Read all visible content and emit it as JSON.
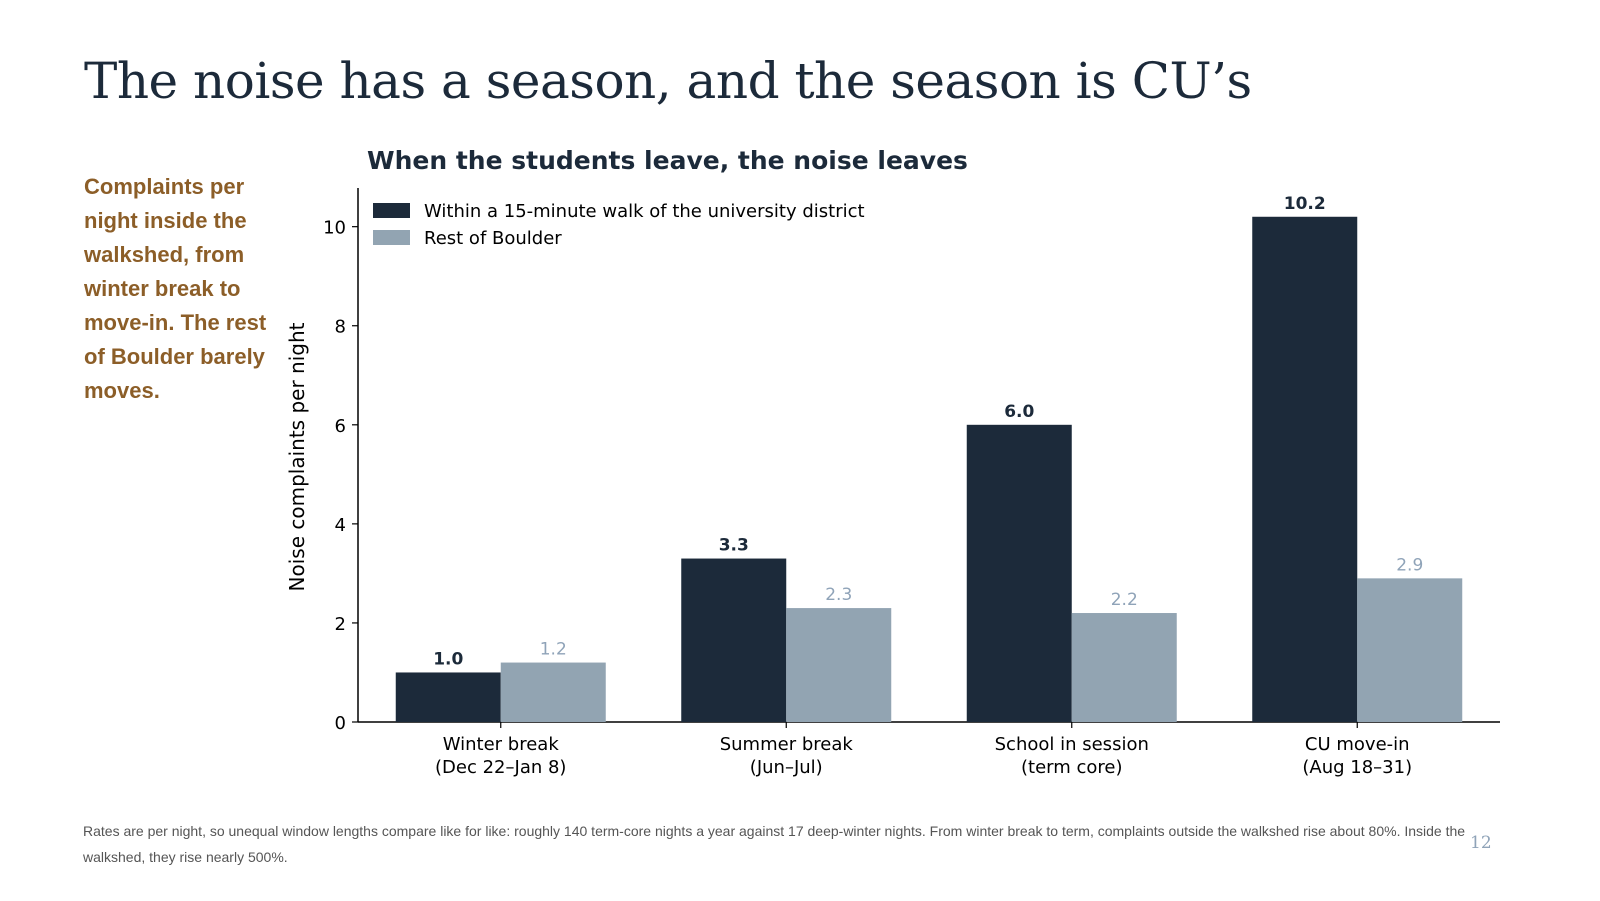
{
  "slide": {
    "title": "The noise has a season, and the season is CU’s",
    "sidebar_note": "Complaints per night inside the walkshed, from winter break to move-in. The rest of Boulder barely moves.",
    "footnote": "Rates are per night, so unequal window lengths compare like for like: roughly 140 term-core nights a year against 17 deep-winter nights. From winter break to term, complaints outside the walkshed rise about 80%. Inside the walkshed, they rise nearly 500%.",
    "page_number": "12"
  },
  "chart_data": {
    "type": "bar",
    "title": "When the students leave, the noise leaves",
    "xlabel": "",
    "ylabel": "Noise complaints per night",
    "ylim": [
      0,
      10.7
    ],
    "yticks": [
      0,
      2,
      4,
      6,
      8,
      10
    ],
    "grid": false,
    "legend_position": "top-left",
    "categories": [
      [
        "Winter break",
        "(Dec 22–Jan 8)"
      ],
      [
        "Summer break",
        "(Jun–Jul)"
      ],
      [
        "School in session",
        "(term core)"
      ],
      [
        "CU move-in",
        "(Aug 18–31)"
      ]
    ],
    "series": [
      {
        "name": "Within a 15-minute walk of the university district",
        "values": [
          1.0,
          3.3,
          6.0,
          10.2
        ],
        "labels": [
          "1.0",
          "3.3",
          "6.0",
          "10.2"
        ],
        "color": "#1c2a3a",
        "label_color": "#1c2a3a",
        "label_bold": true
      },
      {
        "name": "Rest of Boulder",
        "values": [
          1.2,
          2.3,
          2.2,
          2.9
        ],
        "labels": [
          "1.2",
          "2.3",
          "2.2",
          "2.9"
        ],
        "color": "#92a4b2",
        "label_color": "#8fa3b8",
        "label_bold": false
      }
    ]
  }
}
